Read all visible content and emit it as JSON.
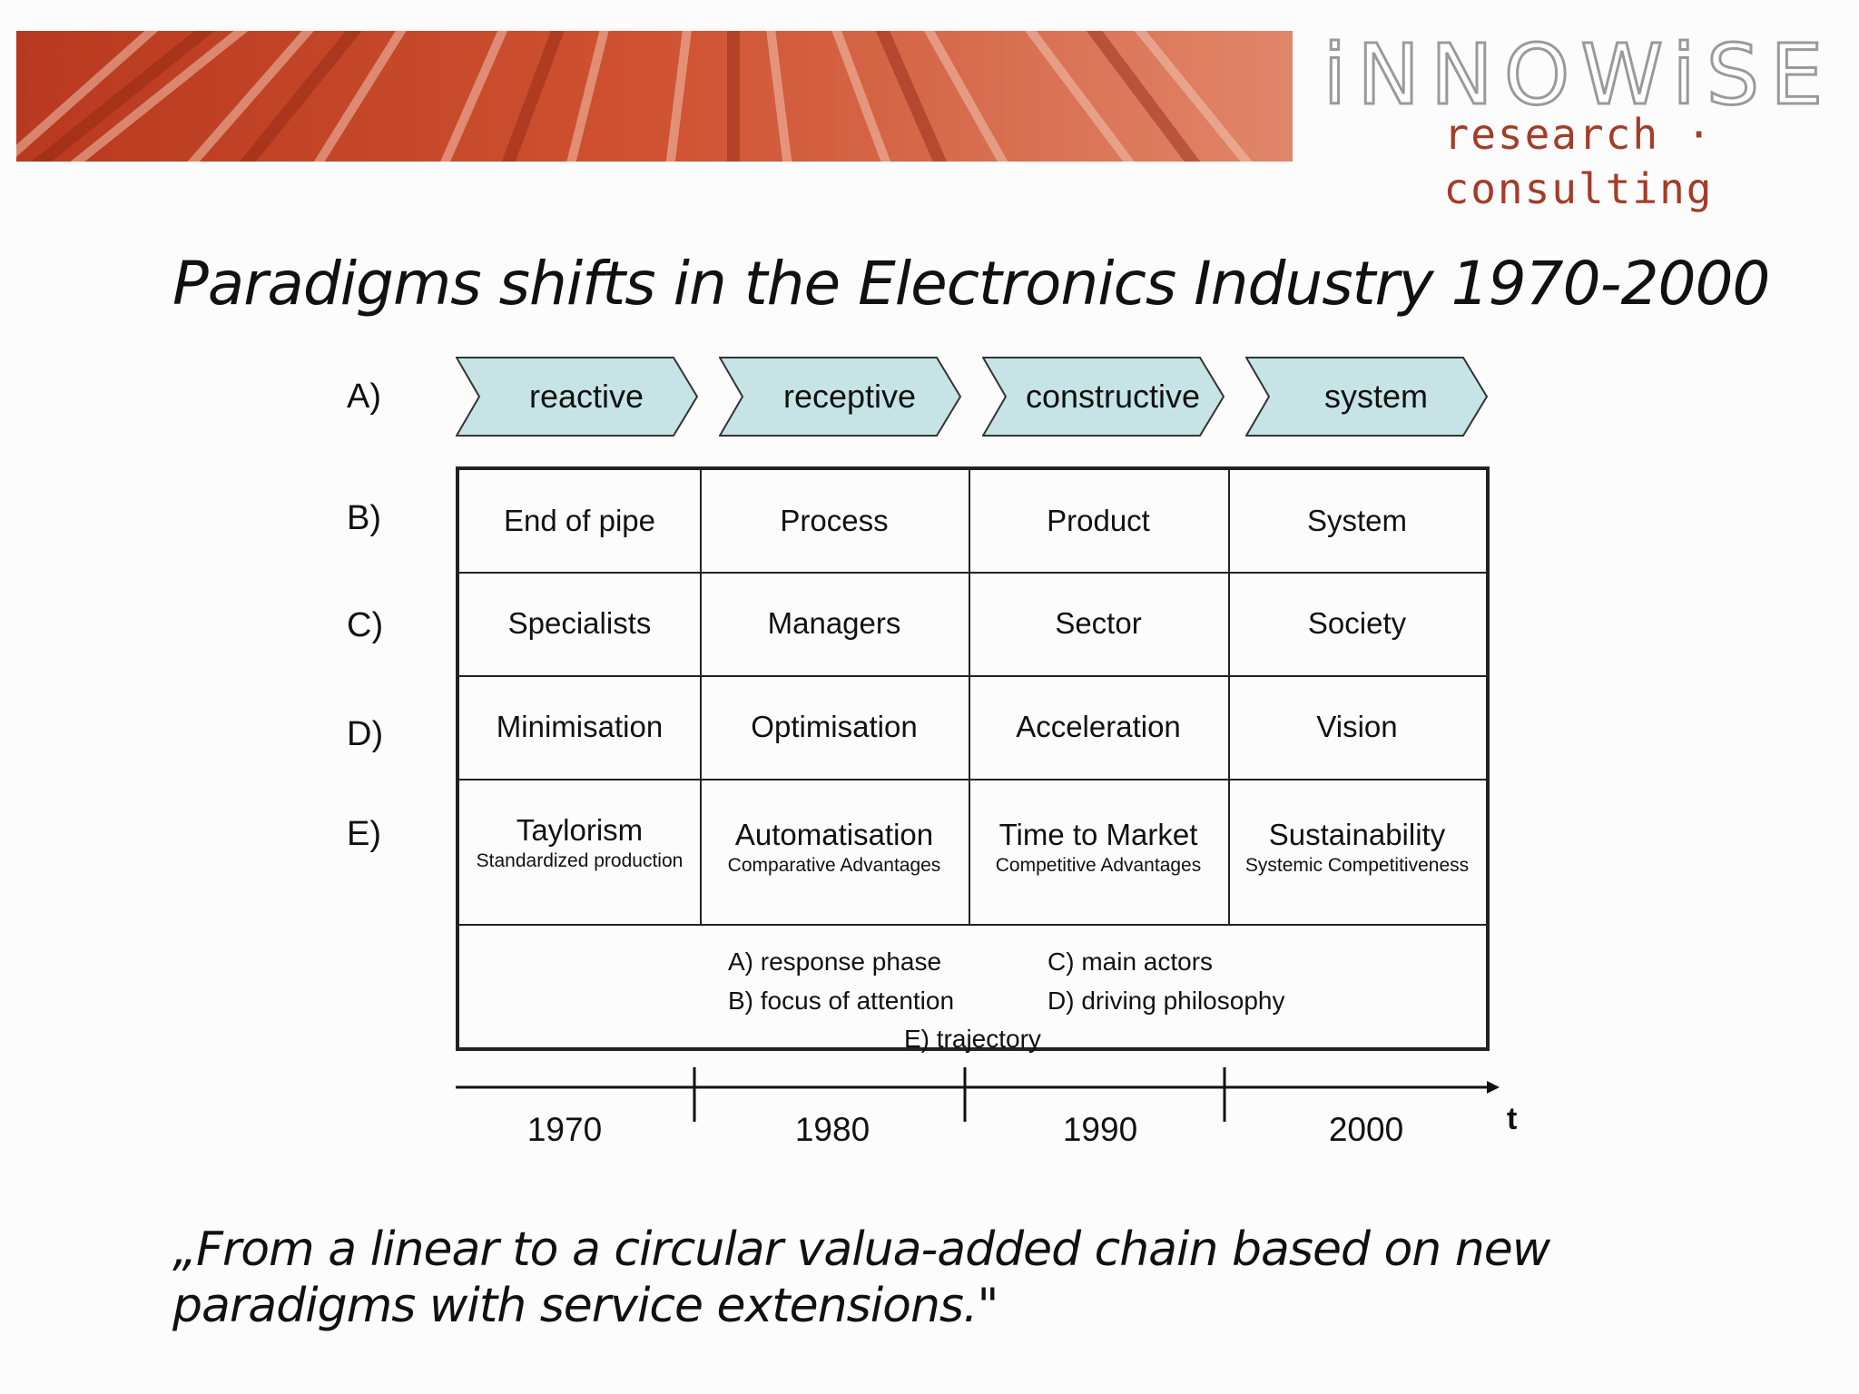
{
  "logo": {
    "line1": "iNNOWiSE",
    "line2": "research · consulting"
  },
  "title": "Paradigms shifts in the Electronics Industry 1970-2000",
  "row_labels": [
    "A)",
    "B)",
    "C)",
    "D)",
    "E)"
  ],
  "phases": [
    "reactive",
    "receptive",
    "constructive",
    "system"
  ],
  "rows": {
    "focus": [
      "End of pipe",
      "Process",
      "Product",
      "System"
    ],
    "actors": [
      "Specialists",
      "Managers",
      "Sector",
      "Society"
    ],
    "philosophy": [
      "Minimisation",
      "Optimisation",
      "Acceleration",
      "Vision"
    ],
    "trajectory": [
      {
        "main": "Taylorism",
        "sub": "Standardized production"
      },
      {
        "main": "Automatisation",
        "sub": "Comparative Advantages"
      },
      {
        "main": "Time to Market",
        "sub": "Competitive Advantages"
      },
      {
        "main": "Sustainability",
        "sub": "Systemic Competitiveness"
      }
    ]
  },
  "legend": {
    "a": "A) response phase",
    "b": "B) focus of attention",
    "c": "C) main actors",
    "d": "D) driving philosophy",
    "e": "E) trajectory"
  },
  "timeline": {
    "years": [
      "1970",
      "1980",
      "1990",
      "2000"
    ],
    "axis_label": "t"
  },
  "quote": "„From a linear to a circular valua-added chain based on new paradigms with service extensions.\"",
  "colors": {
    "chevron_fill": "#c6e4e5",
    "banner": "#c8452c",
    "logo_red": "#a33d28"
  }
}
